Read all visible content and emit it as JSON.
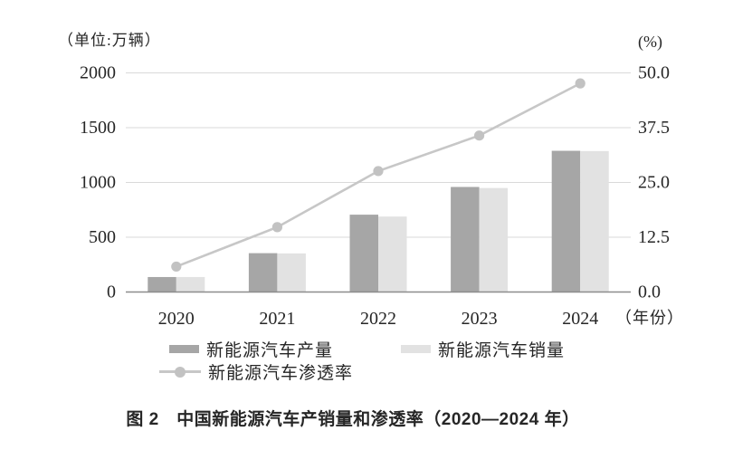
{
  "chart": {
    "unit_label": "（单位:万辆）",
    "percent_label": "(%)",
    "x_axis_suffix": "（年份）"
  },
  "legend": {
    "production": "新能源汽车产量",
    "sales": "新能源汽车销量",
    "penetration": "新能源汽车渗透率"
  },
  "caption": "图 2　中国新能源汽车产销量和渗透率（2020—2024 年）",
  "colors": {
    "production": "#a6a6a6",
    "sales": "#e2e2e2",
    "penetration": "#c7c7c7",
    "dot": "#c2c2c2",
    "grid": "#d9d9d9",
    "axis": "#8c8c8c",
    "text": "#262626"
  },
  "chart_data": {
    "type": "bar",
    "subtype": "grouped-bars-with-line",
    "title": "中国新能源汽车产销量和渗透率（2020—2024 年）",
    "categories": [
      "2020",
      "2021",
      "2022",
      "2023",
      "2024"
    ],
    "series": [
      {
        "name": "新能源汽车产量",
        "type": "bar",
        "axis": "left",
        "values": [
          136.6,
          354.5,
          705.8,
          958.7,
          1288.8
        ]
      },
      {
        "name": "新能源汽车销量",
        "type": "bar",
        "axis": "left",
        "values": [
          136.7,
          352.1,
          688.7,
          949.5,
          1286.6
        ]
      },
      {
        "name": "新能源汽车渗透率",
        "type": "line",
        "axis": "right",
        "values": [
          5.8,
          14.8,
          27.6,
          35.7,
          47.6
        ]
      }
    ],
    "left_axis": {
      "label": "（单位:万辆）",
      "min": 0,
      "max": 2000,
      "ticks": [
        0,
        500,
        1000,
        1500,
        2000
      ]
    },
    "right_axis": {
      "label": "(%)",
      "min": 0,
      "max": 50,
      "ticks": [
        0,
        12.5,
        25,
        37.5,
        50
      ],
      "tick_labels": [
        "0.0",
        "12.5",
        "25.0",
        "37.5",
        "50.0"
      ]
    },
    "xlabel": "（年份）",
    "grid": true,
    "legend_position": "bottom"
  }
}
